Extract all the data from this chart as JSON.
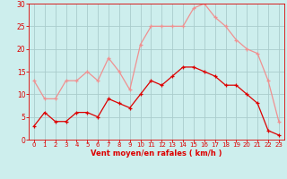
{
  "x": [
    0,
    1,
    2,
    3,
    4,
    5,
    6,
    7,
    8,
    9,
    10,
    11,
    12,
    13,
    14,
    15,
    16,
    17,
    18,
    19,
    20,
    21,
    22,
    23
  ],
  "y_moyen": [
    3,
    6,
    4,
    4,
    6,
    6,
    5,
    9,
    8,
    7,
    10,
    13,
    12,
    14,
    16,
    16,
    15,
    14,
    12,
    12,
    10,
    8,
    2,
    1
  ],
  "y_rafales": [
    13,
    9,
    9,
    13,
    13,
    15,
    13,
    18,
    15,
    11,
    21,
    25,
    25,
    25,
    25,
    29,
    30,
    27,
    25,
    22,
    20,
    19,
    13,
    4
  ],
  "color_moyen": "#dd0000",
  "color_rafales": "#f09090",
  "bg_color": "#cdeeed",
  "grid_color": "#aacccc",
  "xlabel": "Vent moyen/en rafales ( km/h )",
  "ylim": [
    0,
    30
  ],
  "xlim_min": -0.5,
  "xlim_max": 23.5,
  "yticks": [
    0,
    5,
    10,
    15,
    20,
    25,
    30
  ],
  "xticks": [
    0,
    1,
    2,
    3,
    4,
    5,
    6,
    7,
    8,
    9,
    10,
    11,
    12,
    13,
    14,
    15,
    16,
    17,
    18,
    19,
    20,
    21,
    22,
    23
  ],
  "tick_color": "#dd0000",
  "xlabel_fontsize": 6.0,
  "ytick_fontsize": 5.5,
  "xtick_fontsize": 5.0,
  "line_width": 0.9,
  "marker_size": 3.0
}
